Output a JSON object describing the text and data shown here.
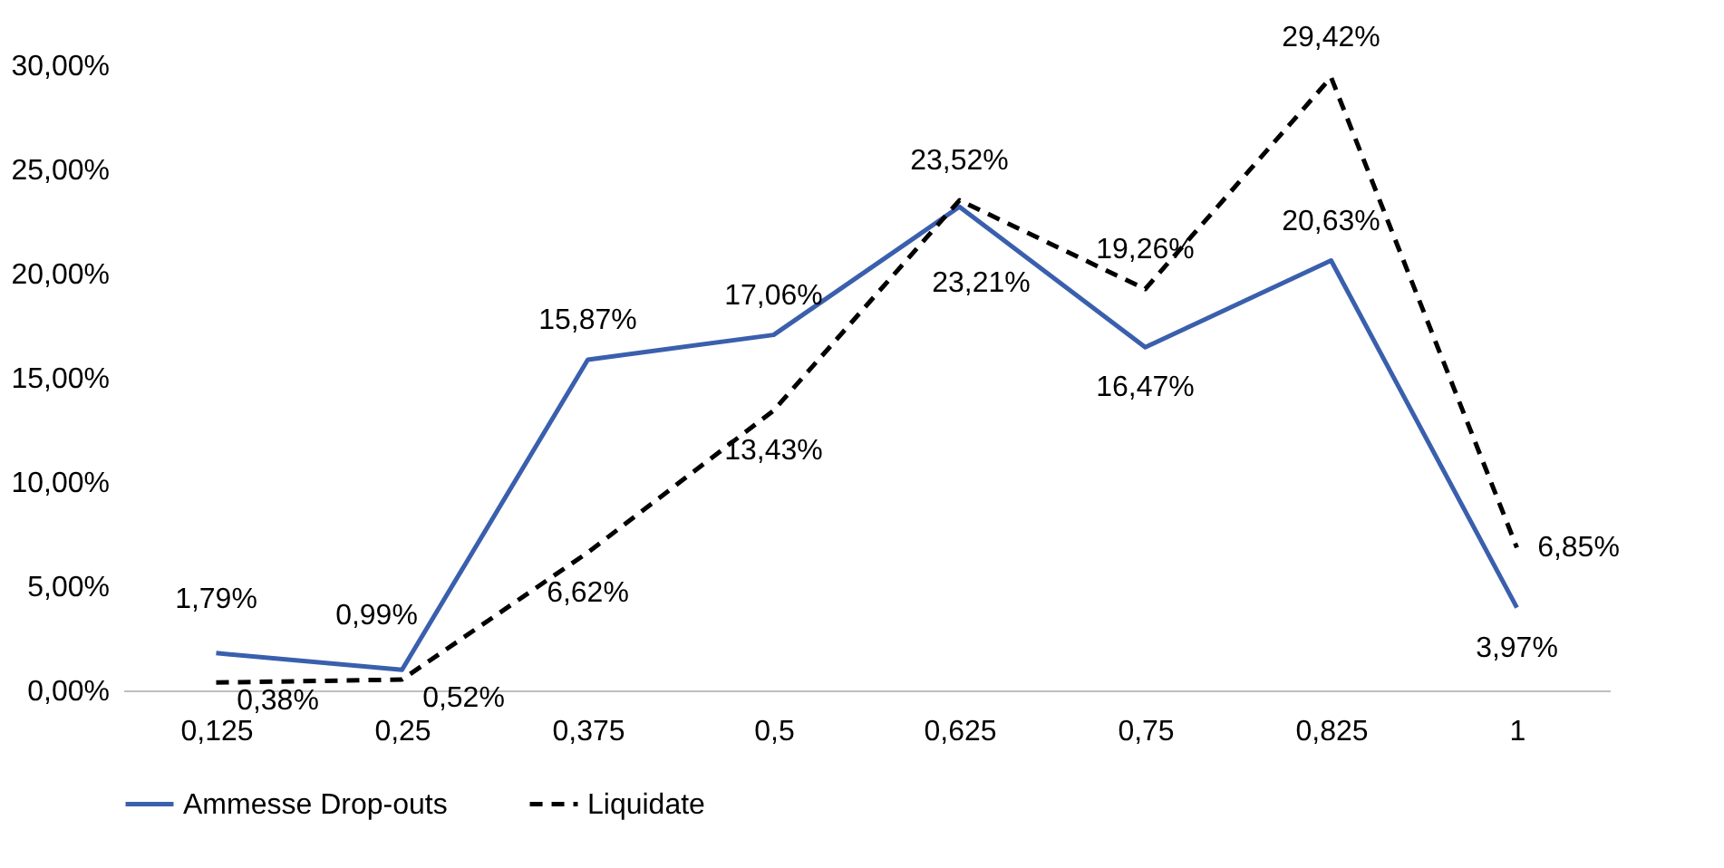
{
  "chart_data": {
    "type": "line",
    "categories": [
      "0,125",
      "0,25",
      "0,375",
      "0,5",
      "0,625",
      "0,75",
      "0,825",
      "1"
    ],
    "series": [
      {
        "name": "Ammesse Drop-outs",
        "color": "#3a5fad",
        "line_style": "solid",
        "values": [
          1.79,
          0.99,
          15.87,
          17.06,
          23.21,
          16.47,
          20.63,
          3.97
        ],
        "value_labels": [
          "1,79%",
          "0,99%",
          "15,87%",
          "17,06%",
          "23,21%",
          "16,47%",
          "20,63%",
          "3,97%"
        ]
      },
      {
        "name": "Liquidate",
        "color": "#000000",
        "line_style": "dashed",
        "values": [
          0.38,
          0.52,
          6.62,
          13.43,
          23.52,
          19.26,
          29.42,
          6.85
        ],
        "value_labels": [
          "0,38%",
          "0,52%",
          "6,62%",
          "13,43%",
          "23,52%",
          "19,26%",
          "29,42%",
          "6,85%"
        ]
      }
    ],
    "ylim": [
      0,
      30
    ],
    "yticks": [
      {
        "value": 0,
        "label": "0,00%"
      },
      {
        "value": 5,
        "label": "5,00%"
      },
      {
        "value": 10,
        "label": "10,00%"
      },
      {
        "value": 15,
        "label": "15,00%"
      },
      {
        "value": 20,
        "label": "20,00%"
      },
      {
        "value": 25,
        "label": "25,00%"
      },
      {
        "value": 30,
        "label": "30,00%"
      }
    ],
    "grid": false,
    "legend": "bottom",
    "marker": "none"
  }
}
